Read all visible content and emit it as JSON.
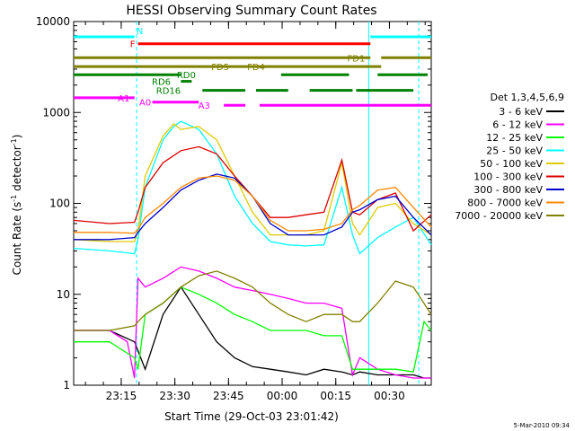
{
  "chart_data": {
    "type": "line",
    "title": "HESSI Observing Summary Count Rates",
    "xlabel": "Start Time (29-Oct-03 23:01:42)",
    "ylabel_main": "Count Rate (s",
    "ylabel_sup1": "-1",
    "ylabel_mid": " detector",
    "ylabel_sup2": "-1",
    "ylabel_end": ")",
    "y_scale": "log",
    "ylim": [
      1,
      10000
    ],
    "xlim_minutes": [
      0,
      100
    ],
    "x_tick_minutes": [
      13.3,
      28.3,
      43.3,
      58.3,
      73.3,
      88.3
    ],
    "x_tick_labels": [
      "23:15",
      "23:30",
      "23:45",
      "00:00",
      "00:15",
      "00:30"
    ],
    "y_tick_values": [
      1,
      10,
      100,
      1000,
      10000
    ],
    "y_tick_labels": [
      "1",
      "10",
      "100",
      "1000",
      "10000"
    ],
    "legend_placement": "right",
    "legend_header": "Det 1,3,4,5,6,9",
    "timestamp": "5-Mar-2010 09:34",
    "series": [
      {
        "name": "3 - 6 keV",
        "color": "#000000",
        "x": [
          0,
          10,
          17,
          20,
          25,
          30,
          35,
          40,
          45,
          50,
          55,
          60,
          65,
          70,
          75,
          78,
          80,
          85,
          90,
          95,
          98,
          100
        ],
        "y": [
          4,
          4,
          3,
          1.5,
          6,
          12,
          6,
          3,
          2,
          1.6,
          1.5,
          1.4,
          1.3,
          1.5,
          1.4,
          1.3,
          1.4,
          1.3,
          1.3,
          1.3,
          1.2,
          1.2
        ]
      },
      {
        "name": "6 - 12 keV",
        "color": "#ff00ff",
        "x": [
          0,
          10,
          15,
          17,
          18,
          20,
          25,
          30,
          35,
          40,
          45,
          50,
          55,
          60,
          65,
          70,
          75,
          78,
          80,
          85,
          90,
          95,
          100
        ],
        "y": [
          4,
          4,
          3,
          1.2,
          15,
          12,
          15,
          20,
          18,
          15,
          12,
          11,
          10,
          9,
          8,
          8,
          7,
          1.3,
          2,
          1.5,
          1.3,
          1.2,
          1.2
        ]
      },
      {
        "name": "12 - 25 keV",
        "color": "#00ff00",
        "x": [
          0,
          10,
          17,
          18,
          20,
          25,
          30,
          35,
          40,
          45,
          50,
          55,
          60,
          65,
          70,
          75,
          78,
          80,
          85,
          90,
          95,
          98,
          100
        ],
        "y": [
          3,
          3,
          2,
          1.5,
          6,
          8,
          12,
          10,
          8,
          6,
          5,
          4,
          4,
          4,
          3.5,
          3.5,
          1.5,
          1.5,
          1.5,
          1.5,
          1.4,
          5,
          4
        ]
      },
      {
        "name": "25 - 50 keV",
        "color": "#00ffff",
        "x": [
          0,
          10,
          17,
          18,
          20,
          25,
          28,
          30,
          35,
          40,
          45,
          50,
          55,
          60,
          65,
          70,
          75,
          78,
          80,
          85,
          90,
          95,
          100
        ],
        "y": [
          32,
          30,
          28,
          40,
          150,
          500,
          700,
          800,
          650,
          350,
          120,
          60,
          38,
          35,
          34,
          35,
          150,
          45,
          28,
          42,
          55,
          70,
          35
        ]
      },
      {
        "name": "50 - 100 keV",
        "color": "#ddcc00",
        "x": [
          0,
          10,
          17,
          18,
          20,
          25,
          28,
          30,
          35,
          40,
          45,
          50,
          55,
          60,
          65,
          70,
          75,
          78,
          80,
          85,
          90,
          95,
          100
        ],
        "y": [
          40,
          38,
          38,
          50,
          200,
          550,
          750,
          650,
          700,
          500,
          200,
          80,
          45,
          45,
          45,
          50,
          280,
          60,
          45,
          90,
          100,
          60,
          45
        ]
      },
      {
        "name": "100 - 300 keV",
        "color": "#dd0000",
        "x": [
          0,
          10,
          17,
          18,
          20,
          25,
          30,
          35,
          40,
          45,
          50,
          55,
          60,
          65,
          70,
          75,
          78,
          80,
          85,
          90,
          95,
          100
        ],
        "y": [
          65,
          60,
          62,
          80,
          150,
          280,
          380,
          420,
          350,
          200,
          120,
          70,
          70,
          75,
          80,
          300,
          80,
          75,
          110,
          130,
          50,
          75
        ]
      },
      {
        "name": "300 - 800 keV",
        "color": "#0000cc",
        "x": [
          0,
          10,
          17,
          18,
          20,
          25,
          30,
          35,
          40,
          45,
          50,
          55,
          60,
          65,
          70,
          75,
          78,
          80,
          85,
          90,
          95,
          100
        ],
        "y": [
          40,
          40,
          42,
          48,
          60,
          90,
          140,
          180,
          210,
          190,
          120,
          60,
          45,
          45,
          45,
          55,
          80,
          85,
          110,
          120,
          70,
          45
        ]
      },
      {
        "name": "800 - 7000 keV",
        "color": "#ff8800",
        "x": [
          0,
          10,
          17,
          18,
          20,
          25,
          30,
          35,
          40,
          45,
          50,
          55,
          60,
          65,
          70,
          75,
          78,
          80,
          85,
          90,
          95,
          100
        ],
        "y": [
          48,
          48,
          47,
          52,
          70,
          100,
          150,
          190,
          200,
          180,
          120,
          65,
          50,
          50,
          52,
          60,
          85,
          95,
          140,
          150,
          90,
          55
        ]
      },
      {
        "name": "7000 - 20000 keV",
        "color": "#808000",
        "x": [
          0,
          10,
          17,
          18,
          20,
          25,
          30,
          35,
          40,
          45,
          50,
          55,
          60,
          65,
          70,
          75,
          78,
          80,
          85,
          90,
          95,
          100
        ],
        "y": [
          4,
          4,
          4.5,
          5,
          6,
          8,
          12,
          16,
          18,
          15,
          12,
          8,
          6,
          5,
          6,
          6,
          5,
          5,
          8,
          14,
          12,
          6
        ]
      }
    ],
    "annotations": [
      {
        "label": "N",
        "color": "#00ffff",
        "segments": [
          [
            0,
            17
          ],
          [
            83,
            100
          ]
        ],
        "y": 6800,
        "label_x": 18.5
      },
      {
        "label": "F",
        "color": "#ff0000",
        "segments": [
          [
            18,
            83
          ]
        ],
        "y": 5700,
        "label_x": 16.5
      },
      {
        "label": "FD1",
        "color": "#808000",
        "segments": [
          [
            0,
            83
          ],
          [
            86,
            100
          ]
        ],
        "y": 4000,
        "label_x": 79
      },
      {
        "label": "FD4",
        "color": "#808000",
        "segments": [
          [
            48,
            86
          ]
        ],
        "y": 3200,
        "label_x": 51
      },
      {
        "label": "FD5",
        "color": "#808000",
        "segments": [
          [
            0,
            48
          ]
        ],
        "y": 3200,
        "label_x": 41
      },
      {
        "label": "RD0",
        "color": "#008000",
        "segments": [
          [
            0,
            30
          ],
          [
            58,
            77
          ],
          [
            85,
            99
          ]
        ],
        "y": 2600,
        "label_x": 31.5
      },
      {
        "label": "RD6",
        "color": "#008000",
        "segments": [
          [
            30,
            33
          ]
        ],
        "y": 2200,
        "label_x": 24.5
      },
      {
        "label": "RD16",
        "color": "#008000",
        "segments": [
          [
            36,
            48
          ],
          [
            51,
            60
          ],
          [
            66,
            78
          ],
          [
            79,
            95
          ]
        ],
        "y": 1750,
        "label_x": 26.5
      },
      {
        "label": "A1",
        "color": "#ff00ff",
        "segments": [
          [
            0,
            17
          ]
        ],
        "y": 1450,
        "label_x": 14
      },
      {
        "label": "A0",
        "color": "#ff00ff",
        "segments": [
          [
            22,
            35
          ]
        ],
        "y": 1300,
        "label_x": 20
      },
      {
        "label": "A3",
        "color": "#ff00ff",
        "segments": [
          [
            42,
            48
          ],
          [
            52,
            100
          ]
        ],
        "y": 1200,
        "label_x": 36.5
      }
    ]
  }
}
